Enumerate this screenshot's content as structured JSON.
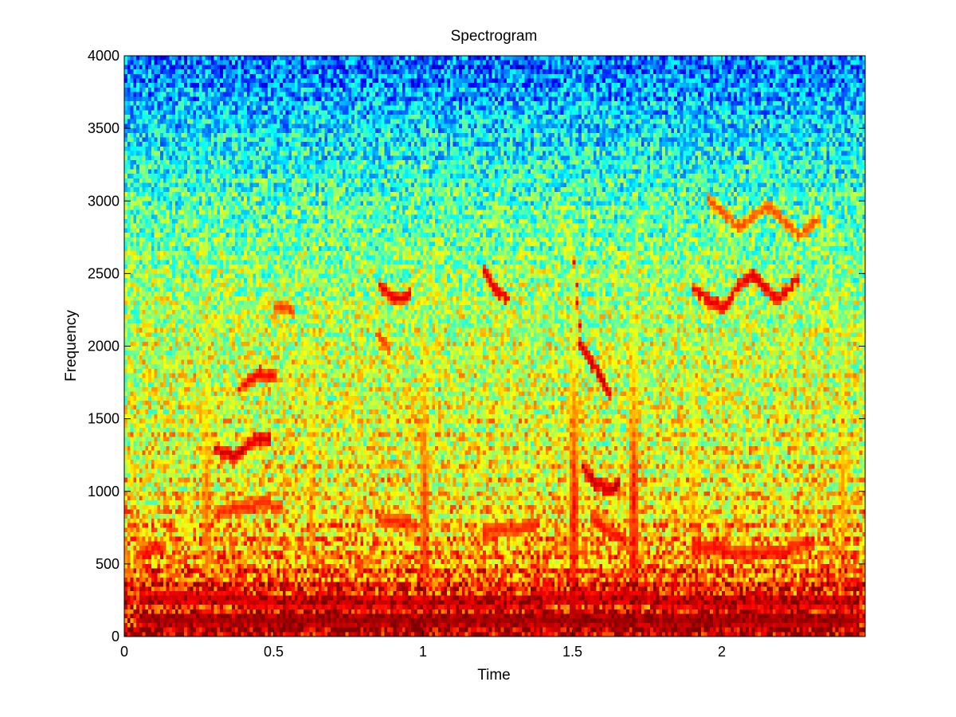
{
  "chart_data": {
    "type": "heatmap",
    "title": "Spectrogram",
    "xlabel": "Time",
    "ylabel": "Frequency",
    "xlim": [
      0,
      2.48
    ],
    "ylim": [
      0,
      4000
    ],
    "x_ticks": [
      0,
      0.5,
      1,
      1.5,
      2
    ],
    "x_tick_labels": [
      "0",
      "0.5",
      "1",
      "1.5",
      "2"
    ],
    "y_ticks": [
      0,
      500,
      1000,
      1500,
      2000,
      2500,
      3000,
      3500,
      4000
    ],
    "y_tick_labels": [
      "0",
      "500",
      "1000",
      "1500",
      "2000",
      "2500",
      "3000",
      "3500",
      "4000"
    ],
    "colormap": "jet",
    "grid": false,
    "legend": "none",
    "time_bins": 248,
    "frequency_bins": 128,
    "time_range": [
      0,
      2.48
    ],
    "frequency_range": [
      0,
      4000
    ],
    "value_unit": "relative level (0 = blue low, 1 = red high)",
    "level_by_frequency": [
      {
        "frequency": 0,
        "level": 0.92
      },
      {
        "frequency": 300,
        "level": 0.86
      },
      {
        "frequency": 500,
        "level": 0.74
      },
      {
        "frequency": 1000,
        "level": 0.62
      },
      {
        "frequency": 2000,
        "level": 0.57
      },
      {
        "frequency": 2500,
        "level": 0.52
      },
      {
        "frequency": 3000,
        "level": 0.45
      },
      {
        "frequency": 3500,
        "level": 0.35
      },
      {
        "frequency": 4000,
        "level": 0.22
      }
    ],
    "ridges": [
      {
        "points": [
          [
            0.05,
            560
          ],
          [
            0.12,
            600
          ]
        ],
        "level": 0.85
      },
      {
        "points": [
          [
            0.3,
            1280
          ],
          [
            0.36,
            1220
          ],
          [
            0.43,
            1340
          ],
          [
            0.48,
            1330
          ]
        ],
        "level": 0.9
      },
      {
        "points": [
          [
            0.3,
            820
          ],
          [
            0.36,
            860
          ],
          [
            0.45,
            900
          ],
          [
            0.52,
            880
          ]
        ],
        "level": 0.82
      },
      {
        "points": [
          [
            0.38,
            1700
          ],
          [
            0.45,
            1800
          ],
          [
            0.5,
            1780
          ]
        ],
        "level": 0.85
      },
      {
        "points": [
          [
            0.5,
            2250
          ],
          [
            0.56,
            2230
          ]
        ],
        "level": 0.8
      },
      {
        "points": [
          [
            0.85,
            2400
          ],
          [
            0.9,
            2300
          ],
          [
            0.95,
            2340
          ]
        ],
        "level": 0.88
      },
      {
        "points": [
          [
            0.84,
            2060
          ],
          [
            0.88,
            1960
          ]
        ],
        "level": 0.8
      },
      {
        "points": [
          [
            0.84,
            800
          ],
          [
            0.9,
            780
          ],
          [
            0.97,
            760
          ]
        ],
        "level": 0.82
      },
      {
        "points": [
          [
            1.2,
            2500
          ],
          [
            1.24,
            2360
          ],
          [
            1.28,
            2300
          ]
        ],
        "level": 0.88
      },
      {
        "points": [
          [
            1.2,
            700
          ],
          [
            1.3,
            720
          ],
          [
            1.38,
            770
          ]
        ],
        "level": 0.82
      },
      {
        "points": [
          [
            1.5,
            2550
          ],
          [
            1.52,
            2000
          ],
          [
            1.58,
            1800
          ],
          [
            1.62,
            1650
          ]
        ],
        "level": 0.9
      },
      {
        "points": [
          [
            1.53,
            1150
          ],
          [
            1.57,
            1040
          ],
          [
            1.62,
            990
          ],
          [
            1.65,
            1030
          ]
        ],
        "level": 0.92
      },
      {
        "points": [
          [
            1.56,
            800
          ],
          [
            1.62,
            700
          ],
          [
            1.67,
            650
          ]
        ],
        "level": 0.84
      },
      {
        "points": [
          [
            1.9,
            2380
          ],
          [
            1.95,
            2300
          ],
          [
            2.0,
            2250
          ],
          [
            2.05,
            2400
          ],
          [
            2.1,
            2480
          ],
          [
            2.18,
            2300
          ],
          [
            2.25,
            2450
          ]
        ],
        "level": 0.88
      },
      {
        "points": [
          [
            1.95,
            3000
          ],
          [
            2.05,
            2800
          ],
          [
            2.15,
            2950
          ],
          [
            2.25,
            2750
          ],
          [
            2.32,
            2850
          ]
        ],
        "level": 0.78
      },
      {
        "points": [
          [
            1.9,
            600
          ],
          [
            2.0,
            580
          ],
          [
            2.1,
            560
          ],
          [
            2.2,
            570
          ],
          [
            2.3,
            640
          ]
        ],
        "level": 0.84
      },
      {
        "points": [
          [
            0.05,
            250
          ],
          [
            0.5,
            230
          ],
          [
            1.0,
            210
          ],
          [
            1.5,
            240
          ],
          [
            2.45,
            220
          ]
        ],
        "level": 0.9
      },
      {
        "points": [
          [
            0.05,
            100
          ],
          [
            0.6,
            90
          ],
          [
            1.2,
            80
          ],
          [
            1.8,
            90
          ],
          [
            2.45,
            80
          ]
        ],
        "level": 0.95
      }
    ],
    "onsets": [
      {
        "time": 0.27,
        "level": 0.75
      },
      {
        "time": 0.62,
        "level": 0.7
      },
      {
        "time": 1.0,
        "level": 0.8
      },
      {
        "time": 1.5,
        "level": 0.85
      },
      {
        "time": 1.7,
        "level": 0.85
      },
      {
        "time": 1.9,
        "level": 0.7
      },
      {
        "time": 2.4,
        "level": 0.7
      }
    ]
  }
}
